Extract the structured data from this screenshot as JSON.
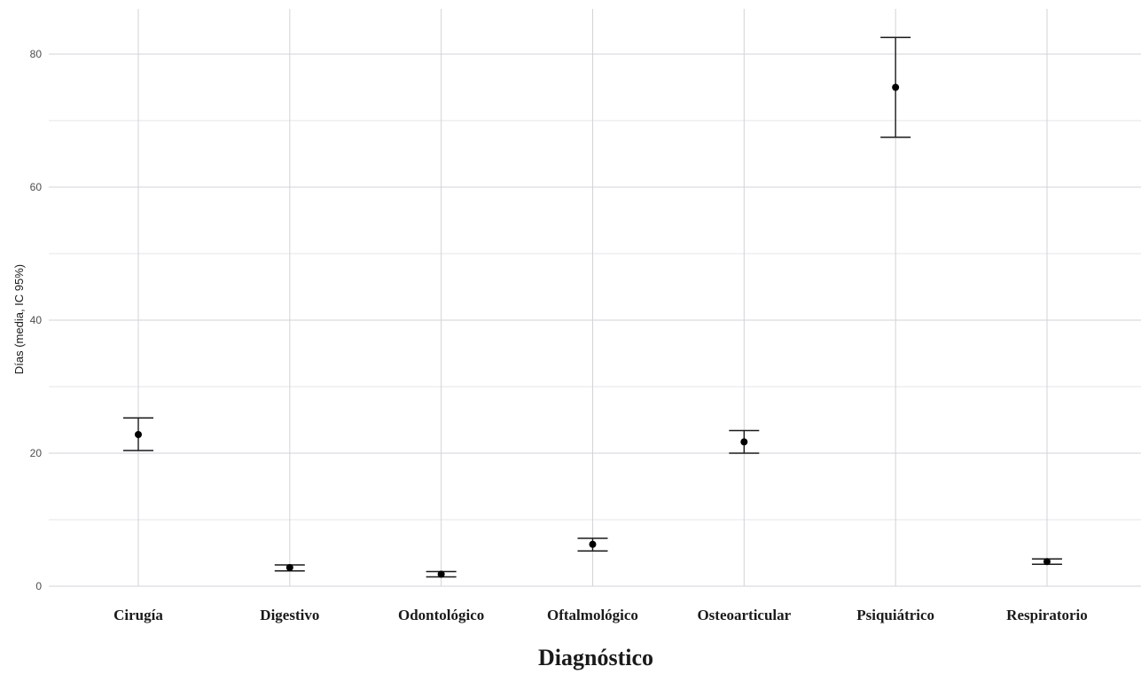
{
  "chart_data": {
    "type": "scatter",
    "title": "",
    "xlabel": "Diagnóstico",
    "ylabel": "Días (media, IC 95%)",
    "categories": [
      "Cirugía",
      "Digestivo",
      "Odontológico",
      "Oftalmológico",
      "Osteoarticular",
      "Psiquiátrico",
      "Respiratorio"
    ],
    "means": [
      22.8,
      2.8,
      1.8,
      6.3,
      21.7,
      75.0,
      3.7
    ],
    "lower": [
      20.4,
      2.3,
      1.4,
      5.3,
      20.0,
      67.5,
      3.3
    ],
    "upper": [
      25.3,
      3.2,
      2.2,
      7.2,
      23.4,
      82.5,
      4.1
    ],
    "ylim": [
      0,
      85
    ],
    "yticks": [
      0,
      20,
      40,
      60,
      80
    ],
    "grid": true,
    "legend": "none",
    "colors": {
      "point": "#000000",
      "errorbar": "#1a1a1a",
      "grid": "#d3d3d8"
    }
  }
}
